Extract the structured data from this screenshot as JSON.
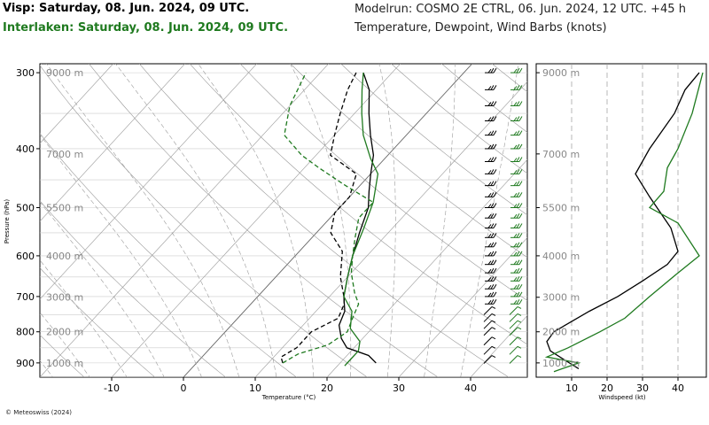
{
  "header": {
    "left_line1": "Visp: Saturday, 08. Jun. 2024, 09 UTC.",
    "left_line2": "Interlaken: Saturday, 08. Jun. 2024, 09 UTC.",
    "right_line1": "Modelrun: COSMO 2E CTRL, 06. Jun. 2024, 12 UTC. +45 h",
    "right_line2": "Temperature, Dewpoint, Wind Barbs (knots)"
  },
  "footer": {
    "copyright": "© Meteoswiss (2024)"
  },
  "colors": {
    "visp": "#000000",
    "interlaken": "#1f7a1f",
    "grid": "#999999"
  },
  "chart_data": [
    {
      "type": "line",
      "chart_kind": "skew-T log-P diagram",
      "xlabel": "Temperature (°C)",
      "ylabel": "Pressure (hPa)",
      "xlim": [
        -20,
        47
      ],
      "ylim": [
        950,
        290
      ],
      "y_scale": "log",
      "x_ticks": [
        -10,
        0,
        10,
        20,
        30,
        40
      ],
      "x_tick_labels": [
        "-10",
        "0",
        "10",
        "20",
        "30",
        "40"
      ],
      "y_ticks": [
        300,
        400,
        500,
        600,
        700,
        800,
        900
      ],
      "y_tick_labels": [
        "300",
        "400",
        "500",
        "600",
        "700",
        "800",
        "900"
      ],
      "altitude_labels": [
        {
          "p": 300,
          "label": "9000 m"
        },
        {
          "p": 408,
          "label": "7000 m"
        },
        {
          "p": 500,
          "label": "5500 m"
        },
        {
          "p": 600,
          "label": "4000 m"
        },
        {
          "p": 702,
          "label": "3000 m"
        },
        {
          "p": 800,
          "label": "2000 m"
        },
        {
          "p": 900,
          "label": "1000 m"
        }
      ],
      "grid": true,
      "series": [
        {
          "name": "Visp: Saturday, 08. Jun. 2024, 09 UTC.",
          "kind": "temperature",
          "color": "#000000",
          "dash": "solid",
          "points": [
            [
              25,
              900
            ],
            [
              23,
              875
            ],
            [
              19,
              850
            ],
            [
              17,
              820
            ],
            [
              15,
              780
            ],
            [
              14,
              740
            ],
            [
              12,
              700
            ],
            [
              10,
              650
            ],
            [
              8,
              600
            ],
            [
              6,
              550
            ],
            [
              4,
              500
            ],
            [
              2,
              470
            ],
            [
              0,
              440
            ],
            [
              -2,
              410
            ],
            [
              -5,
              380
            ],
            [
              -8,
              350
            ],
            [
              -11,
              320
            ],
            [
              -14,
              300
            ]
          ]
        },
        {
          "name": "Visp: Saturday, 08. Jun. 2024, 09 UTC.",
          "kind": "dewpoint",
          "color": "#000000",
          "dash": "dashed",
          "points": [
            [
              12,
              900
            ],
            [
              11,
              880
            ],
            [
              12,
              850
            ],
            [
              12,
              800
            ],
            [
              14,
              760
            ],
            [
              13,
              720
            ],
            [
              12,
              700
            ],
            [
              9,
              650
            ],
            [
              6,
              590
            ],
            [
              2,
              550
            ],
            [
              0,
              510
            ],
            [
              0,
              480
            ],
            [
              -2,
              440
            ],
            [
              -8,
              410
            ],
            [
              -10,
              380
            ],
            [
              -12,
              350
            ],
            [
              -14,
              320
            ],
            [
              -15,
              300
            ]
          ]
        },
        {
          "name": "Interlaken: Saturday, 08. Jun. 2024, 09 UTC.",
          "kind": "temperature",
          "color": "#1f7a1f",
          "dash": "solid",
          "points": [
            [
              21,
              910
            ],
            [
              21,
              890
            ],
            [
              21,
              860
            ],
            [
              20,
              830
            ],
            [
              17,
              790
            ],
            [
              15,
              740
            ],
            [
              12,
              700
            ],
            [
              10,
              650
            ],
            [
              8,
              600
            ],
            [
              6,
              540
            ],
            [
              4,
              490
            ],
            [
              1,
              440
            ],
            [
              -2,
              415
            ],
            [
              -6,
              380
            ],
            [
              -9,
              350
            ],
            [
              -12,
              320
            ],
            [
              -14,
              300
            ]
          ]
        },
        {
          "name": "Interlaken: Saturday, 08. Jun. 2024, 09 UTC.",
          "kind": "dewpoint",
          "color": "#1f7a1f",
          "dash": "dashed",
          "points": [
            [
              12,
              900
            ],
            [
              13,
              870
            ],
            [
              16,
              840
            ],
            [
              17,
              800
            ],
            [
              16,
              760
            ],
            [
              15,
              720
            ],
            [
              13,
              690
            ],
            [
              10,
              640
            ],
            [
              8,
              600
            ],
            [
              6,
              560
            ],
            [
              4,
              520
            ],
            [
              4,
              490
            ],
            [
              -2,
              460
            ],
            [
              -8,
              430
            ],
            [
              -12,
              410
            ],
            [
              -17,
              380
            ],
            [
              -20,
              340
            ],
            [
              -22,
              300
            ]
          ]
        }
      ]
    },
    {
      "type": "line",
      "chart_kind": "wind speed profile",
      "xlabel": "Windspeed (kt)",
      "ylabel": "",
      "xlim": [
        0,
        48
      ],
      "x_ticks": [
        10,
        20,
        30,
        40
      ],
      "x_tick_labels": [
        "10",
        "20",
        "30",
        "40"
      ],
      "altitude_labels": [
        {
          "p": 300,
          "label": "9000 m"
        },
        {
          "p": 408,
          "label": "7000 m"
        },
        {
          "p": 500,
          "label": "5500 m"
        },
        {
          "p": 600,
          "label": "4000 m"
        },
        {
          "p": 702,
          "label": "3000 m"
        },
        {
          "p": 800,
          "label": "2000 m"
        },
        {
          "p": 900,
          "label": "1000 m"
        }
      ],
      "series": [
        {
          "name": "Visp: Saturday, 08. Jun. 2024, 09 UTC.",
          "color": "#000000",
          "points": [
            [
              12,
              920
            ],
            [
              8,
              890
            ],
            [
              4,
              860
            ],
            [
              3,
              830
            ],
            [
              5,
              800
            ],
            [
              15,
              740
            ],
            [
              23,
              700
            ],
            [
              30,
              660
            ],
            [
              37,
              620
            ],
            [
              40,
              590
            ],
            [
              38,
              540
            ],
            [
              32,
              480
            ],
            [
              28,
              440
            ],
            [
              32,
              400
            ],
            [
              39,
              350
            ],
            [
              42,
              320
            ],
            [
              46,
              300
            ]
          ]
        },
        {
          "name": "Interlaken: Saturday, 08. Jun. 2024, 09 UTC.",
          "color": "#1f7a1f",
          "points": [
            [
              5,
              930
            ],
            [
              12,
              900
            ],
            [
              3,
              880
            ],
            [
              9,
              850
            ],
            [
              18,
              800
            ],
            [
              25,
              760
            ],
            [
              32,
              700
            ],
            [
              40,
              640
            ],
            [
              46,
              600
            ],
            [
              40,
              530
            ],
            [
              32,
              500
            ],
            [
              36,
              470
            ],
            [
              37,
              430
            ],
            [
              40,
              400
            ],
            [
              44,
              350
            ],
            [
              47,
              300
            ]
          ]
        }
      ]
    }
  ]
}
